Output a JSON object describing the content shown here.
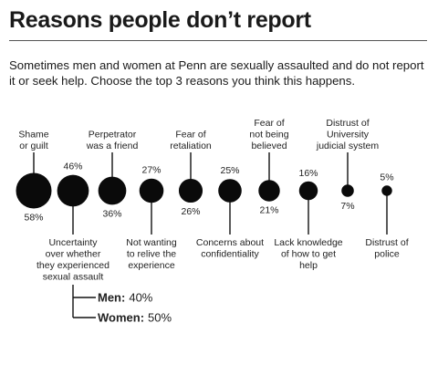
{
  "title": "Reasons people don’t report",
  "subtitle": "Sometimes men and women at Penn are sexually assaulted and do not report it or seek help. Choose the top 3 reasons you think this happens.",
  "chart_data": {
    "type": "bubble",
    "categories": [
      [
        "Shame",
        "or guilt"
      ],
      [
        "Uncertainty",
        "over whether",
        "they experienced",
        "sexual assault"
      ],
      [
        "Perpetrator",
        "was a friend"
      ],
      [
        "Not wanting",
        "to relive the",
        "experience"
      ],
      [
        "Fear of",
        "retaliation"
      ],
      [
        "Concerns about",
        "confidentiality"
      ],
      [
        "Fear of",
        "not being",
        "believed"
      ],
      [
        "Lack knowledge",
        "of how to get",
        "help"
      ],
      [
        "Distrust of",
        "University",
        "judicial system"
      ],
      [
        "Distrust of",
        "police"
      ]
    ],
    "values": [
      58,
      46,
      36,
      27,
      26,
      25,
      21,
      16,
      7,
      5
    ],
    "value_labels": [
      "58%",
      "46%",
      "36%",
      "27%",
      "26%",
      "25%",
      "21%",
      "16%",
      "7%",
      "5%"
    ],
    "breakdown": {
      "category_index": 1,
      "items": [
        {
          "label": "Men:",
          "value": "40%"
        },
        {
          "label": "Women:",
          "value": "50%"
        }
      ]
    }
  }
}
